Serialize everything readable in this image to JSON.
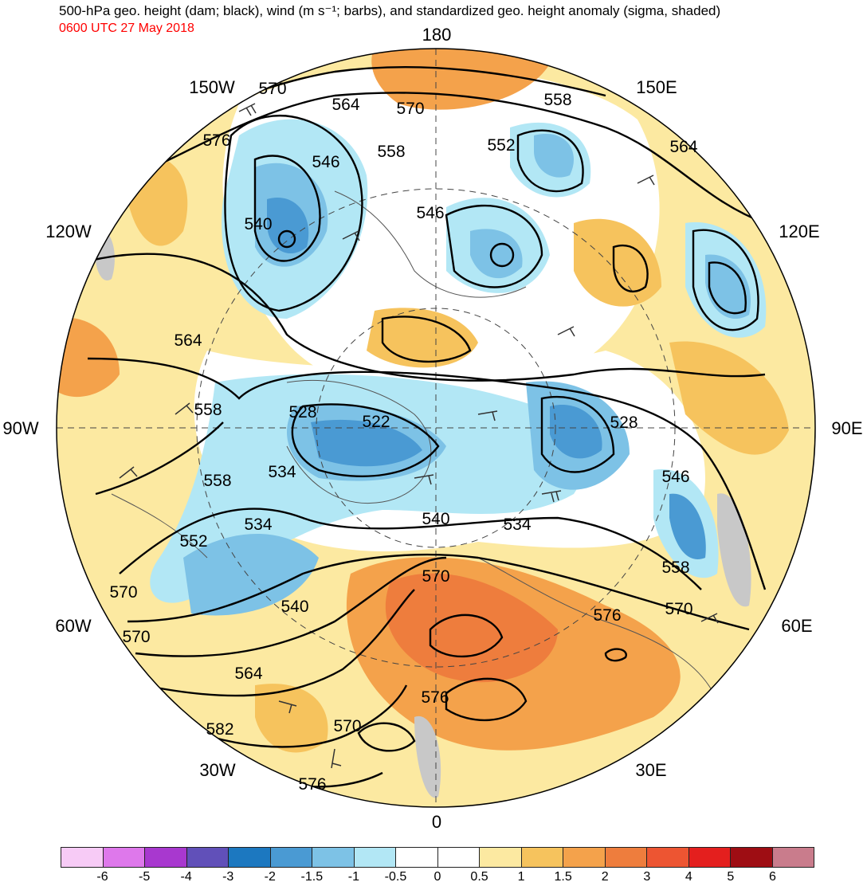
{
  "title": "500-hPa geo. height (dam; black), wind (m s⁻¹; barbs), and standardized geo. height anomaly (sigma, shaded)",
  "valid_time": "0600 UTC 27 May 2018",
  "colors": {
    "valid_time": "#ff0000",
    "contour": "#000000",
    "coast": "#555555",
    "missing": "#c8c8c8"
  },
  "longitude_labels": {
    "deg_180": "180",
    "deg_150e": "150E",
    "deg_120e": "120E",
    "deg_90e": "90E",
    "deg_60e": "60E",
    "deg_30e": "30E",
    "deg_0": "0",
    "deg_30w": "30W",
    "deg_60w": "60W",
    "deg_90w": "90W",
    "deg_120w": "120W",
    "deg_150w": "150W"
  },
  "contour_labels": [
    "570",
    "564",
    "570",
    "558",
    "552",
    "558",
    "546",
    "564",
    "576",
    "540",
    "546",
    "564",
    "558",
    "528",
    "522",
    "528",
    "534",
    "558",
    "546",
    "534",
    "540",
    "534",
    "552",
    "558",
    "570",
    "540",
    "570",
    "576",
    "570",
    "570",
    "564",
    "576",
    "582",
    "570",
    "576"
  ],
  "colorbar": {
    "colors": [
      "#f7cbf6",
      "#de78eb",
      "#a838cf",
      "#6150b9",
      "#1c78c0",
      "#4a9ad3",
      "#7dc2e6",
      "#b2e7f5",
      "#ffffff",
      "#ffffff",
      "#fce9a1",
      "#f6c35d",
      "#f4a24b",
      "#ee7d3d",
      "#ed5532",
      "#e41f1e",
      "#9e0d13",
      "#c97c8c"
    ],
    "ticks": [
      "-6",
      "-5",
      "-4",
      "-3",
      "-2",
      "-1.5",
      "-1",
      "-0.5",
      "0",
      "0.5",
      "1",
      "1.5",
      "2",
      "3",
      "4",
      "5",
      "6"
    ]
  }
}
